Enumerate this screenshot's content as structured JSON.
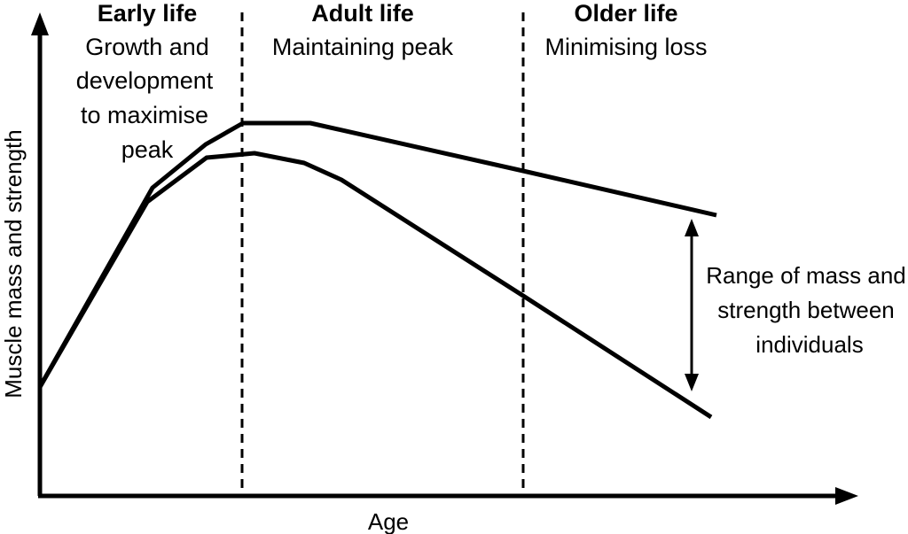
{
  "chart_data": {
    "type": "line",
    "title": "",
    "xlabel": "Age",
    "ylabel": "Muscle mass and strength",
    "axis_ticks": false,
    "grid": false,
    "line_color": "#000000",
    "phases": [
      {
        "title": "Early life",
        "description": [
          "Growth and",
          "development",
          "to maximise",
          "peak"
        ]
      },
      {
        "title": "Adult life",
        "description": [
          "Maintaining peak"
        ]
      },
      {
        "title": "Older life",
        "description": [
          "Minimising loss"
        ]
      }
    ],
    "range_annotation": [
      "Range of mass and",
      "strength between",
      "individuals"
    ]
  }
}
